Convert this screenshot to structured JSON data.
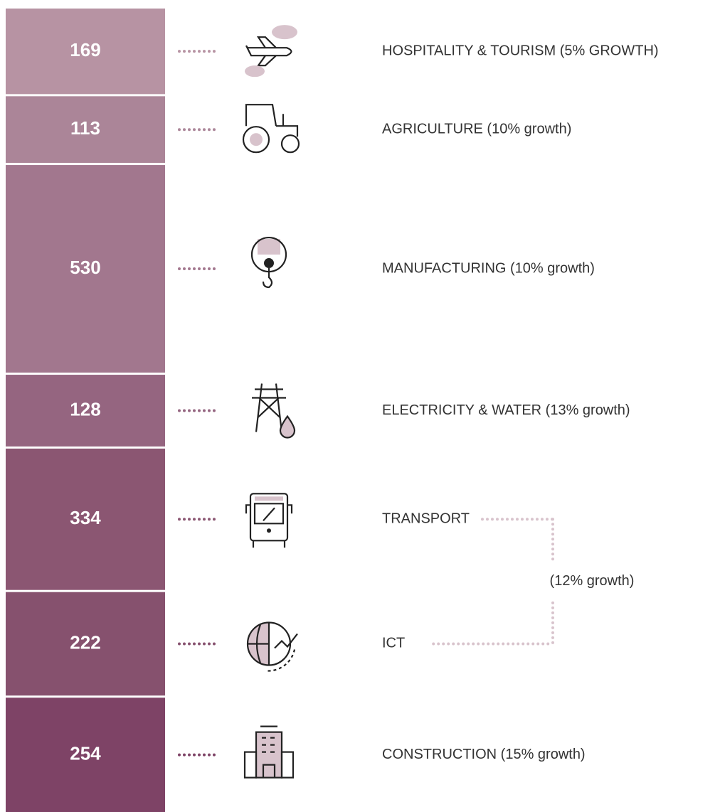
{
  "chart_data": {
    "type": "stacked_column",
    "categories": [
      "HOSPITALITY & TOURISM (5% GROWTH)",
      "AGRICULTURE (10% growth)",
      "MANUFACTURING (10% growth)",
      "ELECTRICITY & WATER  (13% growth)",
      "TRANSPORT",
      "ICT",
      "CONSTRUCTION (15% growth)"
    ],
    "values": [
      169,
      113,
      530,
      128,
      334,
      222,
      254
    ],
    "colors": [
      "#b793a3",
      "#ab8598",
      "#a2778e",
      "#956580",
      "#8b5672",
      "#86516e",
      "#7e4366"
    ],
    "annotation": "(12% growth)"
  }
}
